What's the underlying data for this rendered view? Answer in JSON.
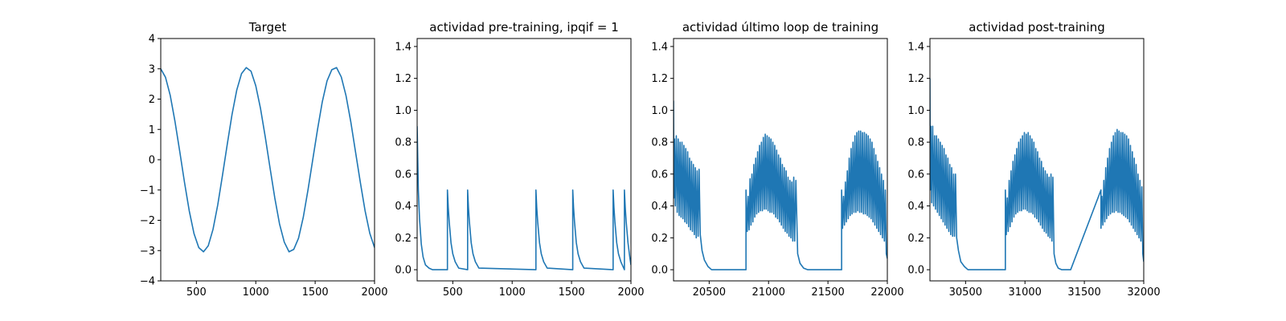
{
  "colors": {
    "line": "#1f77b4",
    "axes": "#000000",
    "background": "#ffffff"
  },
  "chart_data": [
    {
      "type": "line",
      "title": "Target",
      "xlabel": "",
      "ylabel": "",
      "xlim": [
        200,
        2000
      ],
      "ylim": [
        -4,
        4
      ],
      "grid": false,
      "xticks": [
        500,
        1000,
        1500,
        2000
      ],
      "xtick_labels": [
        "500",
        "1000",
        "1500",
        "2000"
      ],
      "yticks": [
        -4,
        -3,
        -2,
        -1,
        0,
        1,
        2,
        3,
        4
      ],
      "ytick_labels": [
        "−4",
        "−3",
        "−2",
        "−1",
        "0",
        "1",
        "2",
        "3",
        "4"
      ],
      "x": [
        200,
        240,
        280,
        320,
        360,
        400,
        440,
        480,
        520,
        560,
        600,
        640,
        680,
        720,
        760,
        800,
        840,
        880,
        920,
        960,
        1000,
        1040,
        1080,
        1120,
        1160,
        1200,
        1240,
        1280,
        1320,
        1360,
        1400,
        1440,
        1480,
        1520,
        1560,
        1600,
        1640,
        1680,
        1720,
        1760,
        1800,
        1840,
        1880,
        1920,
        1960,
        2000
      ],
      "y": [
        3.0,
        2.72,
        2.12,
        1.26,
        0.27,
        -0.75,
        -1.69,
        -2.44,
        -2.9,
        -3.04,
        -2.84,
        -2.3,
        -1.49,
        -0.51,
        0.51,
        1.49,
        2.3,
        2.84,
        3.04,
        2.92,
        2.44,
        1.69,
        0.75,
        -0.27,
        -1.26,
        -2.12,
        -2.72,
        -3.04,
        -2.96,
        -2.59,
        -1.9,
        -0.99,
        0.01,
        1.0,
        1.91,
        2.6,
        2.97,
        3.04,
        2.73,
        2.11,
        1.25,
        0.25,
        -0.74,
        -1.68,
        -2.43,
        -2.9
      ]
    },
    {
      "type": "line",
      "title": "actividad pre-training, ipqif = 1",
      "xlabel": "",
      "ylabel": "",
      "xlim": [
        200,
        2000
      ],
      "ylim": [
        -0.07,
        1.45
      ],
      "grid": false,
      "xticks": [
        500,
        1000,
        1500,
        2000
      ],
      "xtick_labels": [
        "500",
        "1000",
        "1500",
        "2000"
      ],
      "yticks": [
        0.0,
        0.2,
        0.4,
        0.6,
        0.8,
        1.0,
        1.2,
        1.4
      ],
      "ytick_labels": [
        "0.0",
        "0.2",
        "0.4",
        "0.6",
        "0.8",
        "1.0",
        "1.2",
        "1.4"
      ],
      "x": [
        200,
        205,
        210,
        220,
        235,
        250,
        270,
        300,
        330,
        455,
        455,
        462,
        470,
        485,
        500,
        520,
        550,
        625,
        625,
        632,
        640,
        655,
        670,
        690,
        720,
        1200,
        1200,
        1207,
        1215,
        1230,
        1245,
        1265,
        1295,
        1510,
        1510,
        1517,
        1525,
        1540,
        1555,
        1575,
        1605,
        1850,
        1850,
        1857,
        1865,
        1880,
        1895,
        1915,
        1945,
        1945,
        1952,
        1960,
        1975,
        1990,
        2000
      ],
      "y": [
        0.9,
        0.7,
        0.5,
        0.32,
        0.16,
        0.08,
        0.03,
        0.01,
        0.0,
        0.0,
        0.5,
        0.39,
        0.3,
        0.17,
        0.1,
        0.05,
        0.01,
        0.0,
        0.5,
        0.39,
        0.3,
        0.17,
        0.1,
        0.05,
        0.01,
        0.0,
        0.5,
        0.39,
        0.3,
        0.17,
        0.1,
        0.05,
        0.01,
        0.0,
        0.5,
        0.39,
        0.3,
        0.17,
        0.1,
        0.05,
        0.01,
        0.0,
        0.5,
        0.39,
        0.3,
        0.17,
        0.1,
        0.05,
        0.0,
        0.5,
        0.39,
        0.3,
        0.17,
        0.08,
        0.03
      ]
    },
    {
      "type": "line",
      "title": "actividad último loop de training",
      "xlabel": "",
      "ylabel": "",
      "xlim": [
        20200,
        22000
      ],
      "ylim": [
        -0.07,
        1.45
      ],
      "grid": false,
      "xticks": [
        20500,
        21000,
        21500,
        22000
      ],
      "xtick_labels": [
        "20500",
        "21000",
        "21500",
        "22000"
      ],
      "yticks": [
        0.0,
        0.2,
        0.4,
        0.6,
        0.8,
        1.0,
        1.2,
        1.4
      ],
      "ytick_labels": [
        "0.0",
        "0.2",
        "0.4",
        "0.6",
        "0.8",
        "1.0",
        "1.2",
        "1.4"
      ],
      "x": [
        20200,
        20203,
        20208,
        20215,
        20223,
        20231,
        20239,
        20247,
        20255,
        20263,
        20271,
        20279,
        20287,
        20295,
        20303,
        20311,
        20319,
        20327,
        20335,
        20343,
        20351,
        20359,
        20367,
        20375,
        20383,
        20391,
        20399,
        20407,
        20415,
        20425,
        20440,
        20460,
        20490,
        20520,
        20560,
        20810,
        20810,
        20820,
        20828,
        20836,
        20844,
        20852,
        20860,
        20868,
        20876,
        20884,
        20892,
        20900,
        20908,
        20916,
        20924,
        20932,
        20940,
        20948,
        20956,
        20964,
        20972,
        20980,
        20988,
        20996,
        21004,
        21012,
        21020,
        21028,
        21036,
        21044,
        21052,
        21060,
        21068,
        21076,
        21084,
        21092,
        21100,
        21108,
        21116,
        21124,
        21132,
        21140,
        21148,
        21156,
        21164,
        21172,
        21180,
        21188,
        21196,
        21204,
        21212,
        21220,
        21230,
        21245,
        21265,
        21295,
        21330,
        21370,
        21615,
        21615,
        21623,
        21631,
        21639,
        21647,
        21655,
        21663,
        21671,
        21679,
        21687,
        21695,
        21703,
        21711,
        21719,
        21727,
        21735,
        21743,
        21751,
        21759,
        21767,
        21775,
        21783,
        21791,
        21799,
        21807,
        21815,
        21823,
        21831,
        21839,
        21847,
        21855,
        21863,
        21871,
        21879,
        21887,
        21895,
        21903,
        21911,
        21919,
        21927,
        21935,
        21943,
        21951,
        21959,
        21967,
        21975,
        21983,
        21991,
        22000
      ],
      "y": [
        1.06,
        0.45,
        0.82,
        0.4,
        0.84,
        0.36,
        0.82,
        0.34,
        0.8,
        0.33,
        0.8,
        0.32,
        0.78,
        0.3,
        0.76,
        0.29,
        0.74,
        0.27,
        0.7,
        0.25,
        0.68,
        0.24,
        0.66,
        0.22,
        0.64,
        0.2,
        0.62,
        0.21,
        0.63,
        0.22,
        0.12,
        0.06,
        0.02,
        0.0,
        0.0,
        0.0,
        0.5,
        0.24,
        0.46,
        0.25,
        0.57,
        0.28,
        0.6,
        0.3,
        0.66,
        0.33,
        0.7,
        0.35,
        0.74,
        0.36,
        0.78,
        0.37,
        0.8,
        0.37,
        0.83,
        0.38,
        0.85,
        0.38,
        0.84,
        0.37,
        0.83,
        0.36,
        0.82,
        0.36,
        0.8,
        0.35,
        0.78,
        0.33,
        0.75,
        0.32,
        0.72,
        0.3,
        0.7,
        0.28,
        0.66,
        0.26,
        0.64,
        0.24,
        0.62,
        0.23,
        0.58,
        0.21,
        0.56,
        0.2,
        0.55,
        0.18,
        0.58,
        0.18,
        0.56,
        0.1,
        0.04,
        0.01,
        0.0,
        0.0,
        0.0,
        0.5,
        0.26,
        0.46,
        0.28,
        0.55,
        0.3,
        0.62,
        0.32,
        0.7,
        0.34,
        0.76,
        0.35,
        0.8,
        0.36,
        0.84,
        0.36,
        0.86,
        0.37,
        0.87,
        0.36,
        0.87,
        0.36,
        0.86,
        0.35,
        0.86,
        0.35,
        0.85,
        0.34,
        0.84,
        0.33,
        0.82,
        0.32,
        0.8,
        0.3,
        0.76,
        0.28,
        0.72,
        0.26,
        0.68,
        0.24,
        0.64,
        0.22,
        0.6,
        0.2,
        0.56,
        0.18,
        0.5,
        0.1,
        0.07
      ]
    },
    {
      "type": "line",
      "title": "actividad post-training",
      "xlabel": "",
      "ylabel": "",
      "xlim": [
        30200,
        32000
      ],
      "ylim": [
        -0.07,
        1.45
      ],
      "grid": false,
      "xticks": [
        30500,
        31000,
        31500,
        32000
      ],
      "xtick_labels": [
        "30500",
        "31000",
        "31500",
        "32000"
      ],
      "yticks": [
        0.0,
        0.2,
        0.4,
        0.6,
        0.8,
        1.0,
        1.2,
        1.4
      ],
      "ytick_labels": [
        "0.0",
        "0.2",
        "0.4",
        "0.6",
        "0.8",
        "1.0",
        "1.2",
        "1.4"
      ],
      "x": [
        30200,
        30203,
        30208,
        30215,
        30223,
        30231,
        30239,
        30247,
        30255,
        30263,
        30271,
        30279,
        30287,
        30295,
        30303,
        30311,
        30319,
        30327,
        30335,
        30343,
        30351,
        30359,
        30367,
        30375,
        30383,
        30391,
        30399,
        30407,
        30415,
        30425,
        30440,
        30460,
        30490,
        30520,
        30560,
        30835,
        30835,
        30843,
        30851,
        30859,
        30867,
        30875,
        30883,
        30891,
        30899,
        30907,
        30915,
        30923,
        30931,
        30939,
        30947,
        30955,
        30963,
        30971,
        30979,
        30987,
        30995,
        31003,
        31011,
        31019,
        31027,
        31035,
        31043,
        31051,
        31059,
        31067,
        31075,
        31083,
        31091,
        31099,
        31107,
        31115,
        31123,
        31131,
        31139,
        31147,
        31155,
        31163,
        31171,
        31179,
        31187,
        31195,
        31203,
        31211,
        31219,
        31227,
        31235,
        31245,
        31260,
        31280,
        31310,
        31345,
        31385,
        31640,
        31640,
        31648,
        31656,
        31664,
        31672,
        31680,
        31688,
        31696,
        31704,
        31712,
        31720,
        31728,
        31736,
        31744,
        31752,
        31760,
        31768,
        31776,
        31784,
        31792,
        31800,
        31808,
        31816,
        31824,
        31832,
        31840,
        31848,
        31856,
        31864,
        31872,
        31880,
        31888,
        31896,
        31904,
        31912,
        31920,
        31928,
        31936,
        31944,
        31952,
        31960,
        31968,
        31976,
        31984,
        31992,
        32000
      ],
      "y": [
        1.2,
        0.5,
        0.9,
        0.42,
        0.9,
        0.4,
        0.84,
        0.38,
        0.84,
        0.36,
        0.82,
        0.34,
        0.8,
        0.32,
        0.78,
        0.3,
        0.76,
        0.28,
        0.72,
        0.26,
        0.7,
        0.24,
        0.66,
        0.22,
        0.64,
        0.21,
        0.6,
        0.21,
        0.6,
        0.2,
        0.12,
        0.05,
        0.02,
        0.0,
        0.0,
        0.0,
        0.5,
        0.22,
        0.45,
        0.24,
        0.56,
        0.27,
        0.62,
        0.3,
        0.68,
        0.33,
        0.72,
        0.35,
        0.76,
        0.36,
        0.8,
        0.37,
        0.82,
        0.37,
        0.84,
        0.38,
        0.86,
        0.38,
        0.85,
        0.37,
        0.86,
        0.36,
        0.84,
        0.36,
        0.82,
        0.35,
        0.8,
        0.33,
        0.76,
        0.32,
        0.74,
        0.3,
        0.7,
        0.28,
        0.68,
        0.26,
        0.64,
        0.24,
        0.62,
        0.23,
        0.6,
        0.21,
        0.58,
        0.2,
        0.6,
        0.18,
        0.58,
        0.1,
        0.04,
        0.01,
        0.0,
        0.0,
        0.0,
        0.5,
        0.26,
        0.46,
        0.28,
        0.56,
        0.3,
        0.64,
        0.32,
        0.7,
        0.34,
        0.76,
        0.35,
        0.8,
        0.36,
        0.84,
        0.36,
        0.86,
        0.37,
        0.88,
        0.36,
        0.87,
        0.36,
        0.86,
        0.35,
        0.86,
        0.34,
        0.85,
        0.33,
        0.84,
        0.32,
        0.82,
        0.3,
        0.78,
        0.28,
        0.74,
        0.26,
        0.7,
        0.24,
        0.66,
        0.22,
        0.6,
        0.2,
        0.56,
        0.18,
        0.52,
        0.1,
        0.05
      ]
    }
  ]
}
